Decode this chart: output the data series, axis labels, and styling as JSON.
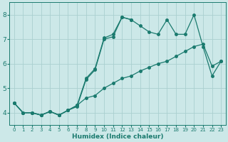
{
  "xlabel": "Humidex (Indice chaleur)",
  "bg_color": "#cce8e8",
  "grid_color": "#aad0d0",
  "line_color": "#1a7a6e",
  "xlim": [
    -0.5,
    23.5
  ],
  "ylim": [
    3.5,
    8.5
  ],
  "xticks": [
    0,
    1,
    2,
    3,
    4,
    5,
    6,
    7,
    8,
    9,
    10,
    11,
    12,
    13,
    14,
    15,
    16,
    17,
    18,
    19,
    20,
    21,
    22,
    23
  ],
  "yticks": [
    4,
    5,
    6,
    7,
    8
  ],
  "series": [
    {
      "x": [
        0,
        1,
        2,
        3,
        4,
        5,
        6,
        7,
        8,
        9,
        10,
        11,
        12,
        13
      ],
      "y": [
        4.4,
        4.0,
        4.0,
        3.9,
        4.05,
        3.9,
        4.1,
        4.25,
        5.35,
        5.75,
        7.0,
        7.1,
        7.9,
        7.8
      ]
    },
    {
      "x": [
        0,
        1,
        2,
        3,
        4,
        5,
        6,
        7,
        8,
        9,
        10,
        11,
        12,
        13,
        14,
        15,
        16,
        17,
        18,
        19,
        20,
        21,
        22,
        23
      ],
      "y": [
        4.4,
        4.0,
        4.0,
        3.9,
        4.05,
        3.9,
        4.1,
        4.3,
        5.4,
        5.8,
        7.05,
        7.2,
        7.9,
        7.8,
        7.55,
        7.3,
        7.2,
        7.8,
        7.2,
        7.2,
        8.0,
        6.7,
        5.5,
        6.1
      ]
    },
    {
      "x": [
        0,
        1,
        2,
        3,
        4,
        5,
        6,
        7,
        8,
        9,
        10,
        11,
        12,
        13,
        14,
        15,
        16,
        17,
        18,
        19,
        20,
        21,
        22,
        23
      ],
      "y": [
        4.4,
        4.0,
        4.0,
        3.9,
        4.05,
        3.9,
        4.1,
        4.3,
        4.6,
        4.7,
        5.0,
        5.2,
        5.4,
        5.5,
        5.7,
        5.85,
        6.0,
        6.1,
        6.3,
        6.5,
        6.7,
        6.8,
        5.9,
        6.1
      ]
    }
  ]
}
